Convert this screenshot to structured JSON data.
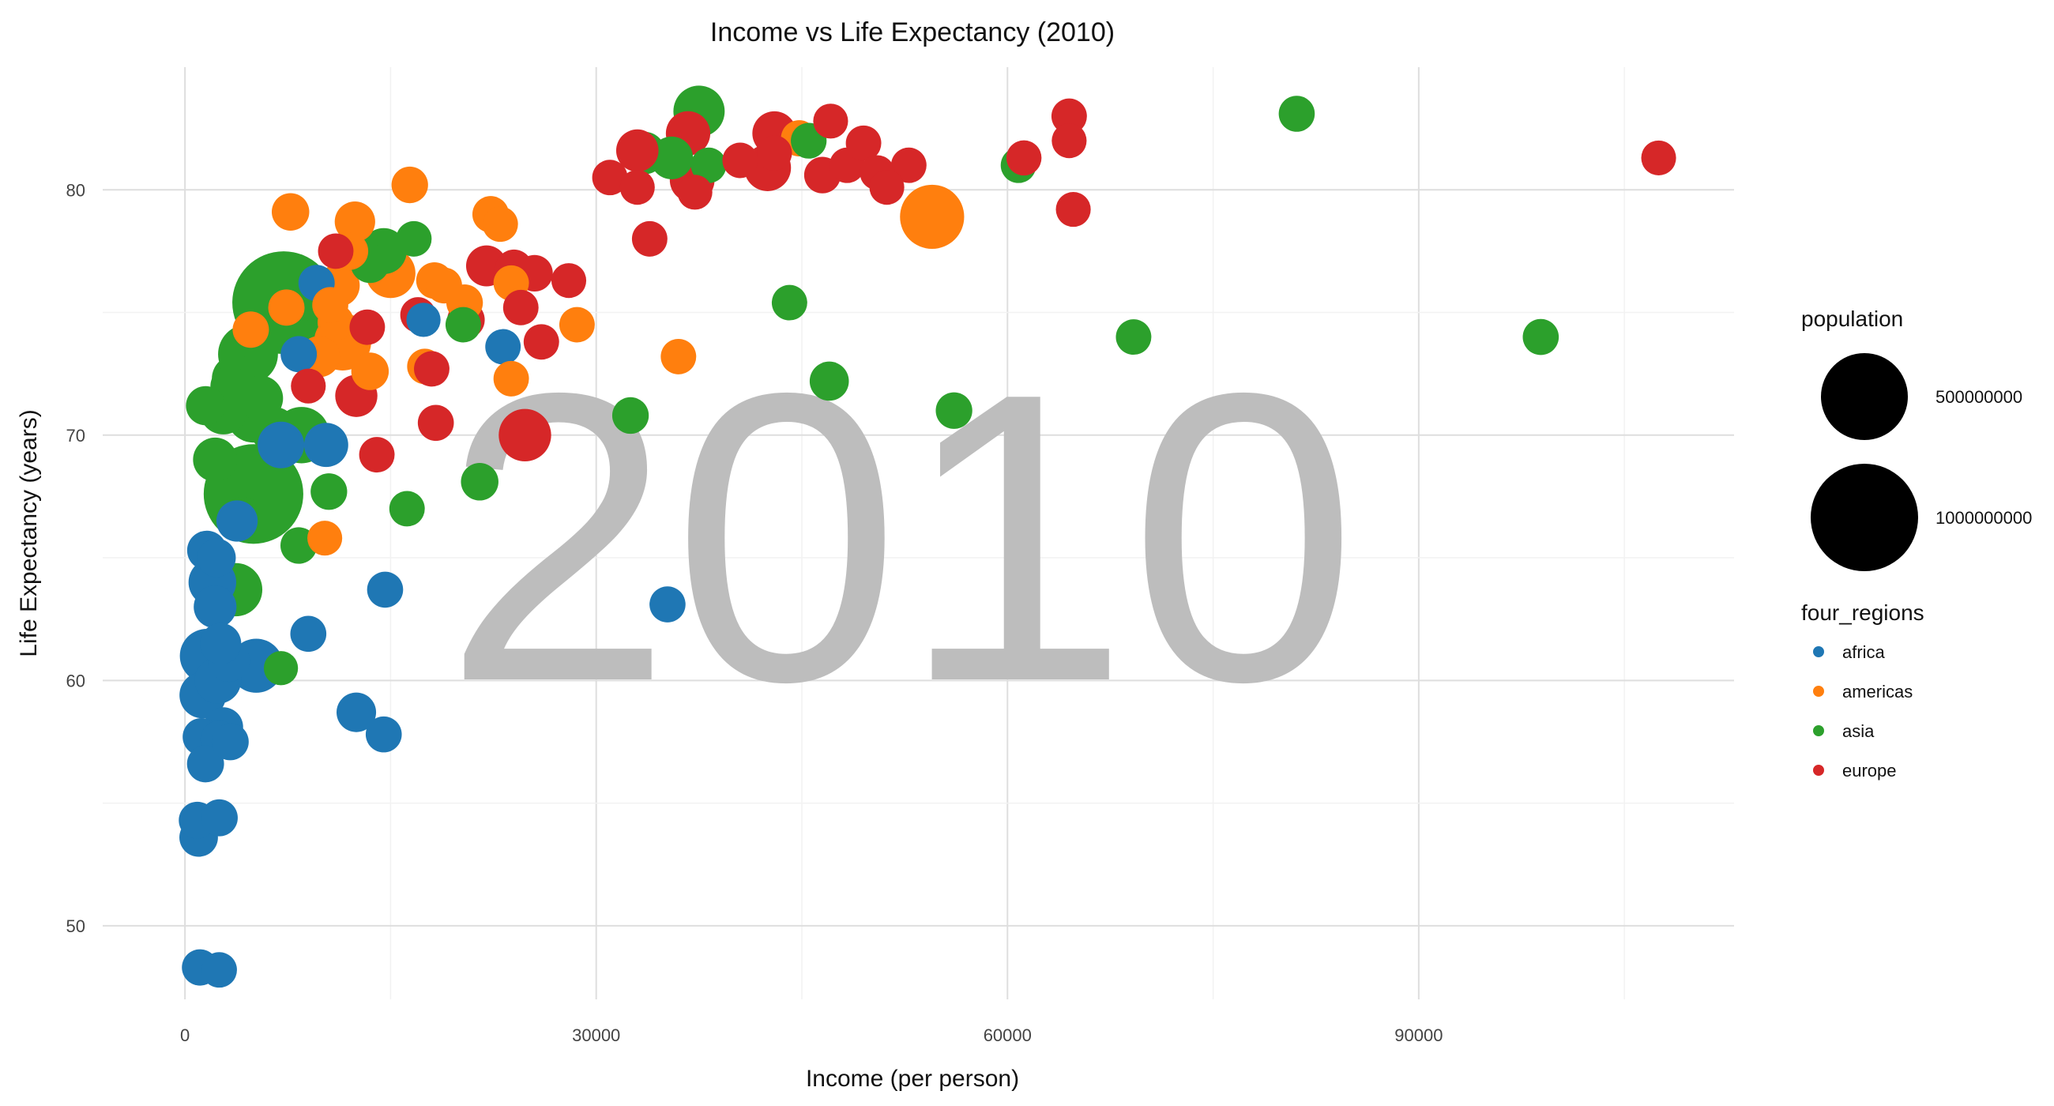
{
  "chart_data": {
    "type": "scatter",
    "title": "Income vs Life Expectancy (2010)",
    "xlabel": "Income (per person)",
    "ylabel": "Life Expectancy (years)",
    "xlim": [
      -6000,
      113000
    ],
    "ylim": [
      47,
      85
    ],
    "x_ticks": [
      0,
      30000,
      60000,
      90000
    ],
    "y_ticks": [
      50,
      60,
      70,
      80
    ],
    "grid": true,
    "watermark": "2010",
    "size_legend": {
      "title": "population",
      "entries": [
        {
          "label": "500000000",
          "value": 500000000
        },
        {
          "label": "1000000000",
          "value": 1000000000
        }
      ]
    },
    "color_legend": {
      "title": "four_regions",
      "placement": "right",
      "entries": [
        {
          "label": "africa",
          "color": "#1f77b4"
        },
        {
          "label": "americas",
          "color": "#ff7f0e"
        },
        {
          "label": "asia",
          "color": "#2ca02c"
        },
        {
          "label": "europe",
          "color": "#d62728"
        }
      ]
    },
    "series": [
      {
        "region": "asia",
        "color": "#2ca02c",
        "points": [
          [
            7200,
            75.4,
            1340000000
          ],
          [
            5000,
            67.6,
            1230000000
          ],
          [
            4600,
            73.3,
            240000000
          ],
          [
            8500,
            70.0,
            190000000
          ],
          [
            5000,
            70.8,
            160000000
          ],
          [
            3700,
            63.7,
            150000000
          ],
          [
            3700,
            72.3,
            90000000
          ],
          [
            2800,
            71.0,
            90000000
          ],
          [
            2200,
            69.0,
            60000000
          ],
          [
            1500,
            71.2,
            28000000
          ],
          [
            3300,
            72.0,
            30000000
          ],
          [
            4200,
            66.6,
            55000000
          ],
          [
            5500,
            71.5,
            70000000
          ],
          [
            6500,
            70.2,
            80000000
          ],
          [
            14500,
            77.5,
            75000000
          ],
          [
            13500,
            77.0,
            28000000
          ],
          [
            9800,
            75.3,
            25000000
          ],
          [
            16700,
            78.0,
            12000000
          ],
          [
            10500,
            67.7,
            16000000
          ],
          [
            8300,
            65.5,
            16000000
          ],
          [
            7000,
            60.5,
            8000000
          ],
          [
            16200,
            67.0,
            12000000
          ],
          [
            21500,
            68.1,
            20000000
          ],
          [
            20300,
            74.5,
            12000000
          ],
          [
            32500,
            70.8,
            16000000
          ],
          [
            37500,
            83.2,
            127000000
          ],
          [
            33500,
            81.5,
            49000000
          ],
          [
            35500,
            81.3,
            50000000
          ],
          [
            38200,
            81.0,
            12000000
          ],
          [
            44100,
            75.4,
            12000000
          ],
          [
            45500,
            82.0,
            13000000
          ],
          [
            47000,
            72.2,
            28000000
          ],
          [
            56100,
            71.0,
            16000000
          ],
          [
            60800,
            81.0,
            12000000
          ],
          [
            69200,
            74.0,
            12000000
          ],
          [
            81100,
            83.1,
            14000000
          ],
          [
            98900,
            74.0,
            14000000
          ]
        ]
      },
      {
        "region": "africa",
        "color": "#1f77b4",
        "points": [
          [
            5200,
            60.6,
            160000000
          ],
          [
            1600,
            61.0,
            160000000
          ],
          [
            2000,
            64.0,
            90000000
          ],
          [
            1300,
            59.4,
            80000000
          ],
          [
            2400,
            60.0,
            80000000
          ],
          [
            7000,
            69.6,
            80000000
          ],
          [
            10300,
            69.6,
            60000000
          ],
          [
            3200,
            60.8,
            45000000
          ],
          [
            2600,
            61.5,
            40000000
          ],
          [
            2800,
            58.1,
            30000000
          ],
          [
            2200,
            63.0,
            50000000
          ],
          [
            1600,
            65.3,
            30000000
          ],
          [
            2300,
            65.0,
            25000000
          ],
          [
            1200,
            57.7,
            20000000
          ],
          [
            1500,
            56.6,
            18000000
          ],
          [
            2500,
            57.6,
            20000000
          ],
          [
            3300,
            57.5,
            18000000
          ],
          [
            900,
            54.3,
            18000000
          ],
          [
            1000,
            53.6,
            25000000
          ],
          [
            2500,
            54.4,
            18000000
          ],
          [
            1100,
            48.3,
            15000000
          ],
          [
            2500,
            48.2,
            12000000
          ],
          [
            12500,
            58.7,
            30000000
          ],
          [
            14500,
            57.8,
            14000000
          ],
          [
            14600,
            63.7,
            14000000
          ],
          [
            9000,
            61.9,
            14000000
          ],
          [
            35200,
            63.1,
            14000000
          ],
          [
            9600,
            76.2,
            15000000
          ],
          [
            8300,
            73.3,
            15000000
          ],
          [
            17400,
            74.7,
            8000000
          ],
          [
            23200,
            73.6,
            12000000
          ],
          [
            3800,
            66.5,
            40000000
          ]
        ]
      },
      {
        "region": "americas",
        "color": "#ff7f0e",
        "points": [
          [
            54500,
            78.9,
            310000000
          ],
          [
            11500,
            73.8,
            200000000
          ],
          [
            15000,
            76.6,
            110000000
          ],
          [
            11200,
            76.1,
            48000000
          ],
          [
            9800,
            73.2,
            40000000
          ],
          [
            12400,
            78.7,
            35000000
          ],
          [
            7700,
            79.1,
            20000000
          ],
          [
            16400,
            80.2,
            16000000
          ],
          [
            4800,
            74.3,
            15000000
          ],
          [
            7400,
            75.2,
            15000000
          ],
          [
            10600,
            75.3,
            14000000
          ],
          [
            12000,
            77.5,
            20000000
          ],
          [
            13500,
            72.6,
            20000000
          ],
          [
            18200,
            76.3,
            16000000
          ],
          [
            20400,
            75.4,
            16000000
          ],
          [
            22300,
            79.0,
            16000000
          ],
          [
            23000,
            78.6,
            12000000
          ],
          [
            17500,
            72.8,
            12000000
          ],
          [
            23800,
            72.3,
            12000000
          ],
          [
            28600,
            74.5,
            12000000
          ],
          [
            36000,
            73.2,
            12000000
          ],
          [
            44800,
            82.1,
            15000000
          ],
          [
            10200,
            65.8,
            10000000
          ],
          [
            23800,
            76.2,
            12000000
          ],
          [
            18900,
            76.1,
            14000000
          ],
          [
            11000,
            74.6,
            15000000
          ]
        ]
      },
      {
        "region": "europe",
        "color": "#d62728",
        "points": [
          [
            42500,
            80.9,
            82000000
          ],
          [
            37000,
            80.4,
            65000000
          ],
          [
            36700,
            82.3,
            62000000
          ],
          [
            43000,
            82.3,
            60000000
          ],
          [
            33000,
            81.6,
            47000000
          ],
          [
            46500,
            80.6,
            16000000
          ],
          [
            40500,
            81.2,
            12000000
          ],
          [
            48300,
            81.0,
            12000000
          ],
          [
            49500,
            81.9,
            12000000
          ],
          [
            52800,
            81.0,
            12000000
          ],
          [
            50500,
            80.7,
            10000000
          ],
          [
            47100,
            82.8,
            10000000
          ],
          [
            43000,
            81.5,
            11000000
          ],
          [
            61200,
            81.3,
            11000000
          ],
          [
            64500,
            83.0,
            12000000
          ],
          [
            64500,
            82.0,
            10000000
          ],
          [
            64800,
            79.2,
            10000000
          ],
          [
            51200,
            80.1,
            10000000
          ],
          [
            31000,
            80.5,
            12000000
          ],
          [
            33000,
            80.1,
            10000000
          ],
          [
            37200,
            79.9,
            10000000
          ],
          [
            33900,
            78.0,
            12000000
          ],
          [
            107500,
            81.3,
            10000000
          ],
          [
            24800,
            70.0,
            140000000
          ],
          [
            22000,
            76.9,
            38000000
          ],
          [
            24000,
            76.8,
            20000000
          ],
          [
            25500,
            76.6,
            16000000
          ],
          [
            24500,
            75.2,
            12000000
          ],
          [
            26000,
            73.8,
            12000000
          ],
          [
            28000,
            76.3,
            10000000
          ],
          [
            13300,
            74.4,
            12000000
          ],
          [
            17000,
            74.9,
            12000000
          ],
          [
            20500,
            74.7,
            20000000
          ],
          [
            12500,
            71.6,
            46000000
          ],
          [
            14000,
            69.2,
            12000000
          ],
          [
            18000,
            72.7,
            12000000
          ],
          [
            18300,
            70.5,
            14000000
          ],
          [
            9000,
            72.0,
            10000000
          ],
          [
            11000,
            77.5,
            12000000
          ]
        ]
      }
    ]
  }
}
